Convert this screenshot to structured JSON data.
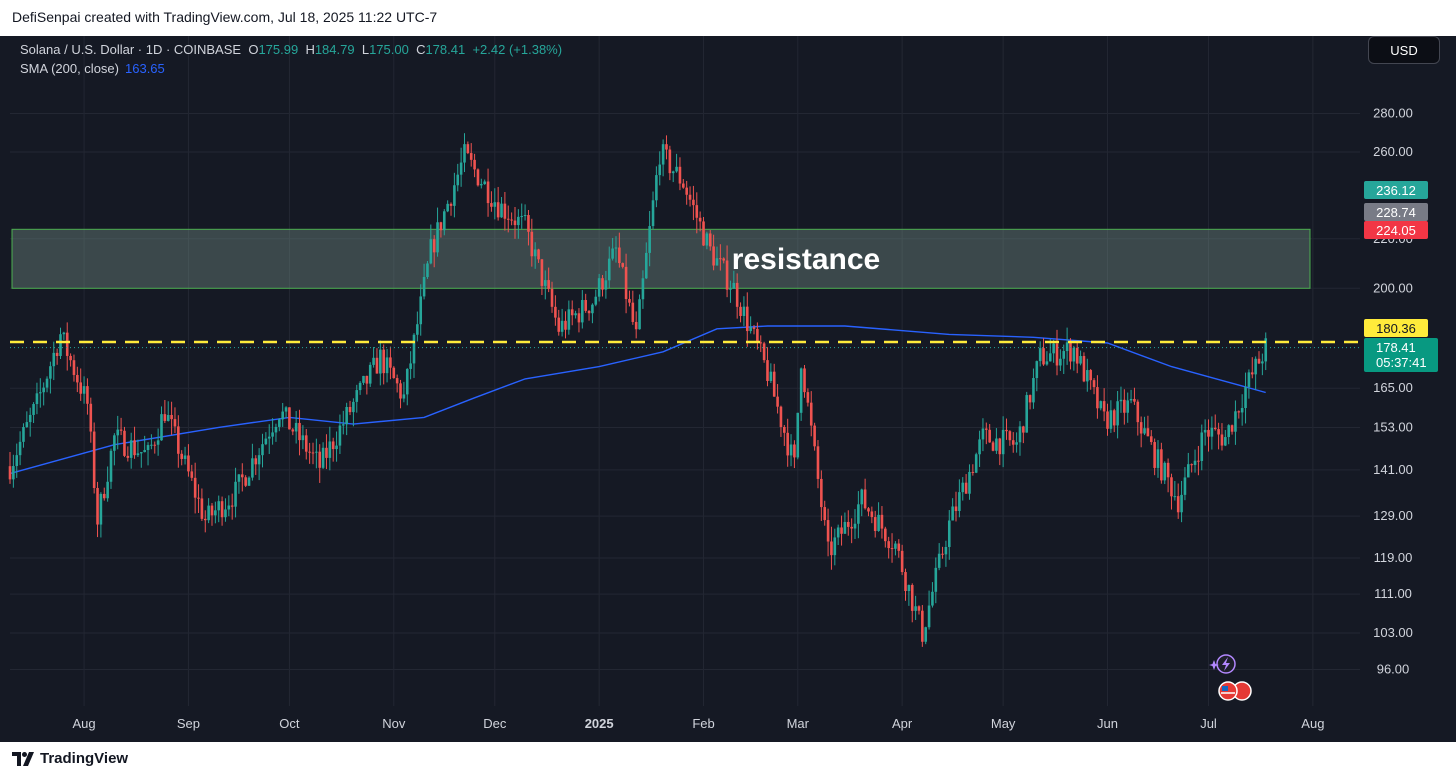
{
  "header": {
    "credit": "DefiSenpai created with TradingView.com, Jul 18, 2025 11:22 UTC-7"
  },
  "legend": {
    "symbol": "Solana / U.S. Dollar · 1D · COINBASE",
    "open_label": "O",
    "open": "175.99",
    "high_label": "H",
    "high": "184.79",
    "low_label": "L",
    "low": "175.00",
    "close_label": "C",
    "close": "178.41",
    "change": "+2.42 (+1.38%)",
    "sma_label": "SMA (200, close)",
    "sma_value": "163.65"
  },
  "currency_button": "USD",
  "footer": {
    "brand": "TradingView"
  },
  "annotation": {
    "zone_label": "resistance"
  },
  "price_tags": [
    {
      "id": "tag-236",
      "value": "236.12",
      "color": "#26a69a"
    },
    {
      "id": "tag-228",
      "value": "228.74",
      "color": "#787b86"
    },
    {
      "id": "tag-224",
      "value": "224.05",
      "color": "#f23645"
    },
    {
      "id": "tag-180",
      "value": "180.36",
      "color": "#ffeb3b"
    }
  ],
  "last_price_tag": {
    "price": "178.41",
    "countdown": "05:37:41",
    "color": "#089981"
  },
  "colors": {
    "up": "#26a69a",
    "down": "#ef5350",
    "sma": "#2962ff",
    "level": "#ffeb3b",
    "zone": "#4caf50",
    "background": "#151924"
  },
  "chart_data": {
    "type": "candlestick",
    "symbol": "SOL/USD",
    "interval": "1D",
    "y_scale": "log",
    "y_ticks": [
      96,
      103,
      111,
      119,
      129,
      141,
      153,
      165,
      200,
      220,
      260,
      280
    ],
    "y_tick_labels": [
      "96.00",
      "103.00",
      "111.00",
      "119.00",
      "129.00",
      "141.00",
      "153.00",
      "165.00",
      "200.00",
      "220.00",
      "260.00",
      "280.00"
    ],
    "x_tick_labels": [
      "Aug",
      "Sep",
      "Oct",
      "Nov",
      "Dec",
      "2025",
      "Feb",
      "Mar",
      "Apr",
      "May",
      "Jun",
      "Jul",
      "Aug"
    ],
    "x_range": [
      "2024-07-10",
      "2025-08-15"
    ],
    "ylim": [
      93,
      300
    ],
    "resistance_zone": {
      "low": 200,
      "high": 224.05,
      "label": "resistance"
    },
    "horizontal_level": 180.36,
    "last_close": 178.41,
    "sma_200_keypoints": [
      {
        "date": "2024-07-10",
        "value": 140
      },
      {
        "date": "2024-08-10",
        "value": 148
      },
      {
        "date": "2024-09-10",
        "value": 153
      },
      {
        "date": "2024-10-01",
        "value": 156
      },
      {
        "date": "2024-10-20",
        "value": 154
      },
      {
        "date": "2024-11-10",
        "value": 156
      },
      {
        "date": "2024-11-25",
        "value": 162
      },
      {
        "date": "2024-12-10",
        "value": 168
      },
      {
        "date": "2025-01-01",
        "value": 172
      },
      {
        "date": "2025-01-20",
        "value": 177
      },
      {
        "date": "2025-02-05",
        "value": 185
      },
      {
        "date": "2025-02-20",
        "value": 186
      },
      {
        "date": "2025-03-15",
        "value": 186
      },
      {
        "date": "2025-04-15",
        "value": 183
      },
      {
        "date": "2025-05-10",
        "value": 182
      },
      {
        "date": "2025-06-01",
        "value": 180
      },
      {
        "date": "2025-06-20",
        "value": 172
      },
      {
        "date": "2025-07-10",
        "value": 166
      },
      {
        "date": "2025-07-18",
        "value": 163.65
      }
    ],
    "close_keypoints": [
      {
        "date": "2024-07-10",
        "value": 142
      },
      {
        "date": "2024-07-18",
        "value": 160
      },
      {
        "date": "2024-07-25",
        "value": 183
      },
      {
        "date": "2024-08-02",
        "value": 160
      },
      {
        "date": "2024-08-05",
        "value": 128
      },
      {
        "date": "2024-08-10",
        "value": 150
      },
      {
        "date": "2024-08-20",
        "value": 145
      },
      {
        "date": "2024-08-25",
        "value": 158
      },
      {
        "date": "2024-09-06",
        "value": 128
      },
      {
        "date": "2024-09-15",
        "value": 135
      },
      {
        "date": "2024-09-28",
        "value": 158
      },
      {
        "date": "2024-10-10",
        "value": 142
      },
      {
        "date": "2024-10-20",
        "value": 160
      },
      {
        "date": "2024-10-28",
        "value": 175
      },
      {
        "date": "2024-11-04",
        "value": 162
      },
      {
        "date": "2024-11-12",
        "value": 215
      },
      {
        "date": "2024-11-22",
        "value": 258
      },
      {
        "date": "2024-12-02",
        "value": 235
      },
      {
        "date": "2024-12-10",
        "value": 225
      },
      {
        "date": "2024-12-20",
        "value": 185
      },
      {
        "date": "2024-12-30",
        "value": 195
      },
      {
        "date": "2025-01-06",
        "value": 215
      },
      {
        "date": "2025-01-12",
        "value": 182
      },
      {
        "date": "2025-01-19",
        "value": 260
      },
      {
        "date": "2025-01-26",
        "value": 245
      },
      {
        "date": "2025-02-03",
        "value": 215
      },
      {
        "date": "2025-02-10",
        "value": 200
      },
      {
        "date": "2025-02-20",
        "value": 170
      },
      {
        "date": "2025-02-28",
        "value": 142
      },
      {
        "date": "2025-03-02",
        "value": 175
      },
      {
        "date": "2025-03-10",
        "value": 120
      },
      {
        "date": "2025-03-20",
        "value": 133
      },
      {
        "date": "2025-03-30",
        "value": 122
      },
      {
        "date": "2025-04-07",
        "value": 103
      },
      {
        "date": "2025-04-15",
        "value": 127
      },
      {
        "date": "2025-04-25",
        "value": 150
      },
      {
        "date": "2025-05-05",
        "value": 148
      },
      {
        "date": "2025-05-12",
        "value": 175
      },
      {
        "date": "2025-05-22",
        "value": 178
      },
      {
        "date": "2025-05-31",
        "value": 155
      },
      {
        "date": "2025-06-08",
        "value": 160
      },
      {
        "date": "2025-06-15",
        "value": 145
      },
      {
        "date": "2025-06-22",
        "value": 133
      },
      {
        "date": "2025-06-30",
        "value": 152
      },
      {
        "date": "2025-07-06",
        "value": 150
      },
      {
        "date": "2025-07-12",
        "value": 165
      },
      {
        "date": "2025-07-18",
        "value": 178.41
      }
    ]
  }
}
